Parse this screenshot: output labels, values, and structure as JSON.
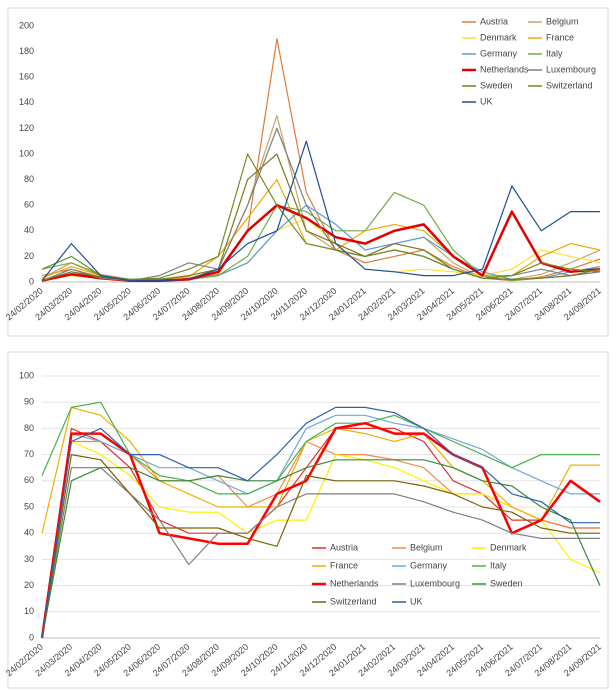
{
  "chart_data": [
    {
      "type": "line",
      "categories": [
        "24/02/2020",
        "24/03/2020",
        "24/04/2020",
        "24/05/2020",
        "24/06/2020",
        "24/07/2020",
        "24/08/2020",
        "24/09/2020",
        "24/10/2020",
        "24/11/2020",
        "24/12/2020",
        "24/01/2021",
        "24/02/2021",
        "24/03/2021",
        "24/04/2021",
        "24/05/2021",
        "24/06/2021",
        "24/07/2021",
        "24/08/2021",
        "24/09/2021"
      ],
      "ylim": [
        0,
        200
      ],
      "yticks": [
        0,
        20,
        40,
        60,
        80,
        100,
        120,
        140,
        160,
        180,
        200
      ],
      "grid": false,
      "legend": "upper right",
      "series": [
        {
          "name": "Austria",
          "color": "#e07b39",
          "values": [
            5,
            10,
            4,
            1,
            1,
            2,
            6,
            40,
            190,
            70,
            25,
            15,
            20,
            25,
            12,
            3,
            1,
            4,
            10,
            18
          ]
        },
        {
          "name": "Belgium",
          "color": "#c9a26b",
          "values": [
            3,
            15,
            6,
            2,
            1,
            3,
            10,
            60,
            130,
            40,
            25,
            20,
            30,
            35,
            15,
            3,
            2,
            6,
            15,
            25
          ]
        },
        {
          "name": "Denmark",
          "color": "#ffe033",
          "values": [
            2,
            5,
            3,
            1,
            1,
            2,
            5,
            15,
            40,
            50,
            30,
            10,
            8,
            10,
            8,
            5,
            10,
            25,
            20,
            15
          ]
        },
        {
          "name": "France",
          "color": "#f0a800",
          "values": [
            3,
            12,
            5,
            1,
            2,
            4,
            20,
            50,
            80,
            30,
            25,
            40,
            45,
            40,
            20,
            5,
            5,
            20,
            30,
            25
          ]
        },
        {
          "name": "Germany",
          "color": "#5b9bd5",
          "values": [
            1,
            8,
            3,
            1,
            1,
            2,
            5,
            15,
            40,
            60,
            45,
            25,
            30,
            35,
            20,
            8,
            2,
            3,
            8,
            12
          ]
        },
        {
          "name": "Italy",
          "color": "#70ad47",
          "values": [
            10,
            15,
            5,
            1,
            1,
            2,
            5,
            20,
            60,
            55,
            40,
            40,
            70,
            60,
            25,
            5,
            1,
            3,
            5,
            8
          ]
        },
        {
          "name": "Netherlands",
          "color": "#e00000",
          "line_width": 2.5,
          "values": [
            1,
            6,
            3,
            1,
            1,
            2,
            8,
            40,
            60,
            50,
            35,
            30,
            40,
            45,
            20,
            5,
            55,
            15,
            8,
            10
          ]
        },
        {
          "name": "Luxembourg",
          "color": "#7f7f7f",
          "values": [
            1,
            10,
            3,
            1,
            5,
            15,
            10,
            60,
            120,
            60,
            25,
            20,
            25,
            20,
            10,
            3,
            5,
            10,
            5,
            8
          ]
        },
        {
          "name": "Sweden",
          "color": "#7a7a20",
          "values": [
            1,
            8,
            4,
            2,
            2,
            5,
            10,
            80,
            100,
            40,
            30,
            20,
            30,
            25,
            10,
            3,
            2,
            3,
            5,
            10
          ]
        },
        {
          "name": "Switzerland",
          "color": "#6b8e23",
          "values": [
            10,
            20,
            5,
            2,
            3,
            10,
            20,
            100,
            60,
            30,
            25,
            20,
            25,
            20,
            10,
            3,
            5,
            15,
            10,
            8
          ]
        },
        {
          "name": "UK",
          "color": "#1f4e99",
          "values": [
            1,
            30,
            5,
            1,
            1,
            2,
            10,
            30,
            40,
            110,
            30,
            10,
            8,
            5,
            5,
            10,
            75,
            40,
            55,
            55
          ]
        }
      ]
    },
    {
      "type": "line",
      "categories": [
        "24/02/2020",
        "24/03/2020",
        "24/04/2020",
        "24/05/2020",
        "24/06/2020",
        "24/07/2020",
        "24/08/2020",
        "24/09/2020",
        "24/10/2020",
        "24/11/2020",
        "24/12/2020",
        "24/01/2021",
        "24/02/2021",
        "24/03/2021",
        "24/04/2021",
        "24/05/2021",
        "24/06/2021",
        "24/07/2021",
        "24/08/2021",
        "24/09/2021"
      ],
      "ylim": [
        0,
        100
      ],
      "yticks": [
        0,
        10,
        20,
        30,
        40,
        50,
        60,
        70,
        80,
        90,
        100
      ],
      "grid": true,
      "legend": "lower center",
      "series": [
        {
          "name": "Austria",
          "color": "#e03030",
          "values": [
            0,
            80,
            75,
            65,
            45,
            40,
            40,
            40,
            50,
            65,
            80,
            80,
            80,
            75,
            60,
            55,
            45,
            45,
            42,
            42
          ]
        },
        {
          "name": "Belgium",
          "color": "#f08a4b",
          "values": [
            0,
            75,
            75,
            70,
            60,
            60,
            62,
            50,
            55,
            75,
            70,
            70,
            68,
            65,
            55,
            55,
            50,
            45,
            42,
            42
          ]
        },
        {
          "name": "Denmark",
          "color": "#ffee00",
          "values": [
            0,
            75,
            70,
            62,
            50,
            48,
            48,
            40,
            45,
            45,
            70,
            68,
            65,
            60,
            55,
            55,
            50,
            45,
            30,
            25
          ]
        },
        {
          "name": "France",
          "color": "#f0b000",
          "values": [
            40,
            88,
            85,
            75,
            60,
            55,
            50,
            50,
            50,
            75,
            80,
            78,
            75,
            78,
            65,
            60,
            50,
            45,
            66,
            66
          ]
        },
        {
          "name": "Germany",
          "color": "#6fa8dc",
          "values": [
            0,
            78,
            75,
            70,
            65,
            65,
            60,
            55,
            60,
            80,
            85,
            85,
            82,
            80,
            76,
            72,
            65,
            60,
            55,
            55
          ]
        },
        {
          "name": "Italy",
          "color": "#4caf50",
          "values": [
            62,
            88,
            90,
            70,
            62,
            60,
            55,
            55,
            60,
            75,
            82,
            82,
            85,
            80,
            75,
            70,
            65,
            70,
            70,
            70
          ]
        },
        {
          "name": "Netherlands",
          "color": "#ff0000",
          "line_width": 2.5,
          "values": [
            0,
            78,
            78,
            70,
            40,
            38,
            36,
            36,
            55,
            60,
            80,
            82,
            78,
            78,
            70,
            65,
            40,
            45,
            60,
            52
          ]
        },
        {
          "name": "Luxembourg",
          "color": "#7f7f7f",
          "values": [
            0,
            65,
            65,
            55,
            45,
            28,
            40,
            40,
            50,
            55,
            55,
            55,
            55,
            52,
            48,
            45,
            40,
            38,
            38,
            38
          ]
        },
        {
          "name": "Sweden",
          "color": "#3a8a3a",
          "values": [
            0,
            60,
            65,
            65,
            60,
            60,
            62,
            60,
            60,
            65,
            68,
            68,
            68,
            68,
            65,
            60,
            58,
            50,
            45,
            20
          ]
        },
        {
          "name": "Switzerland",
          "color": "#7f6000",
          "values": [
            0,
            70,
            68,
            55,
            42,
            42,
            42,
            38,
            35,
            62,
            60,
            60,
            60,
            58,
            55,
            50,
            48,
            42,
            40,
            40
          ]
        },
        {
          "name": "UK",
          "color": "#2e5fa8",
          "values": [
            0,
            75,
            80,
            70,
            70,
            65,
            65,
            60,
            70,
            82,
            88,
            88,
            86,
            80,
            70,
            65,
            55,
            52,
            44,
            44
          ]
        }
      ]
    }
  ]
}
